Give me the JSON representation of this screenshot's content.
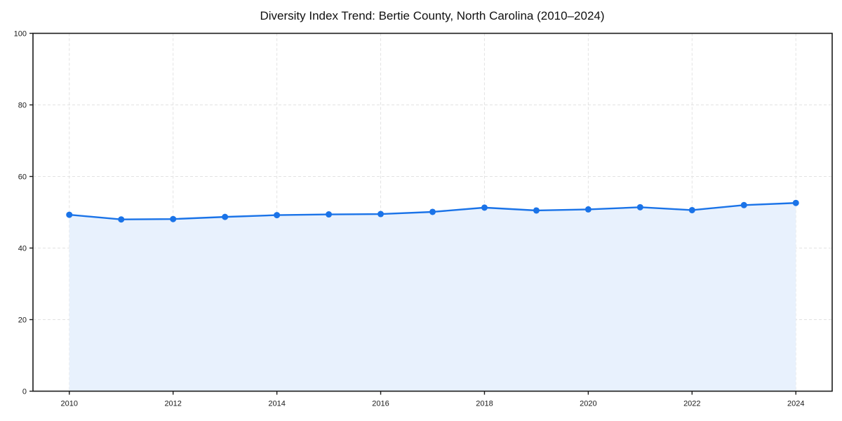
{
  "chart_data": {
    "type": "area",
    "title": "Diversity Index Trend: Bertie County, North Carolina (2010–2024)",
    "xlabel": "",
    "ylabel": "",
    "x": [
      2010,
      2011,
      2012,
      2013,
      2014,
      2015,
      2016,
      2017,
      2018,
      2019,
      2020,
      2021,
      2022,
      2023,
      2024
    ],
    "series": [
      {
        "name": "Diversity Index",
        "values": [
          49.3,
          48.0,
          48.1,
          48.7,
          49.2,
          49.4,
          49.5,
          50.1,
          51.3,
          50.5,
          50.8,
          51.4,
          50.6,
          52.0,
          52.6
        ]
      }
    ],
    "xlim": [
      2009.3,
      2024.7
    ],
    "ylim": [
      0,
      100
    ],
    "xticks": [
      2010,
      2012,
      2014,
      2016,
      2018,
      2020,
      2022,
      2024
    ],
    "yticks": [
      0,
      20,
      40,
      60,
      80,
      100
    ],
    "grid": true,
    "grid_style": "dashed",
    "legend": false,
    "marker": "circle",
    "colors": {
      "line": "#1a73e8",
      "marker": "#1a73e8",
      "area_fill": "#e8f1fd",
      "grid": "#e2e2e2",
      "spine": "#1a1a1a",
      "text": "#1a1a1a",
      "background": "#ffffff"
    }
  }
}
